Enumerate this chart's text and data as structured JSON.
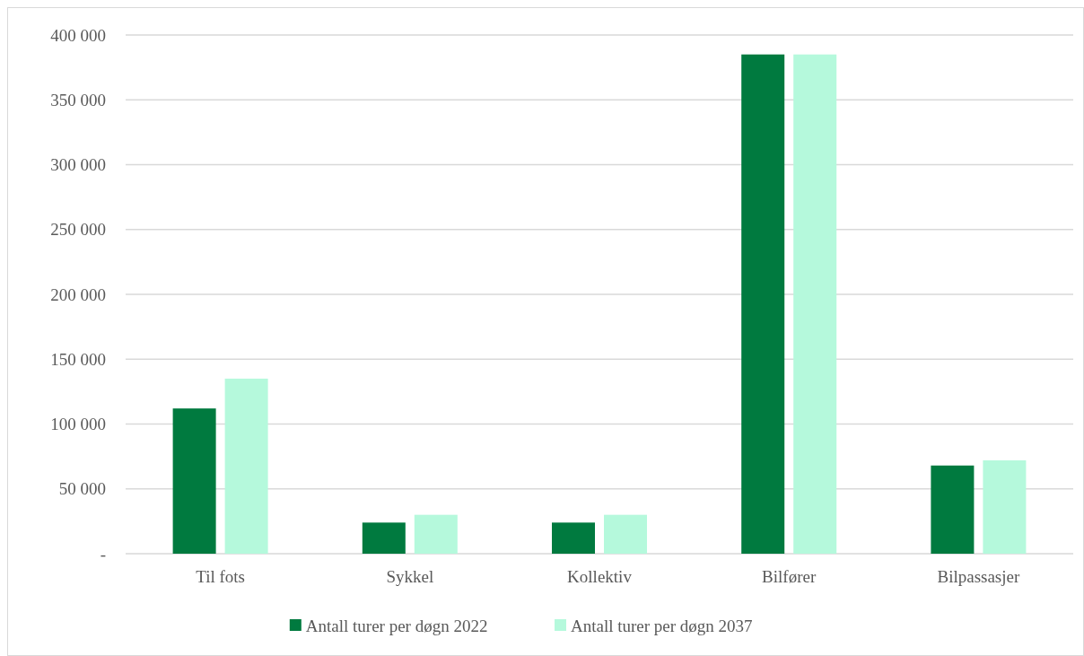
{
  "chart_data": {
    "type": "bar",
    "categories": [
      "Til fots",
      "Sykkel",
      "Kollektiv",
      "Bilfører",
      "Bilpassasjer"
    ],
    "series": [
      {
        "name": "Antall turer per døgn 2022",
        "color": "#007a3f",
        "values": [
          112000,
          24000,
          24000,
          385000,
          68000
        ]
      },
      {
        "name": "Antall turer per døgn 2037",
        "color": "#b5f9dc",
        "values": [
          135000,
          30000,
          30000,
          385000,
          72000
        ]
      }
    ],
    "ylim": [
      0,
      400000
    ],
    "yticks": [
      {
        "value": 0,
        "label": "-"
      },
      {
        "value": 50000,
        "label": "50 000"
      },
      {
        "value": 100000,
        "label": "100 000"
      },
      {
        "value": 150000,
        "label": "150 000"
      },
      {
        "value": 200000,
        "label": "200 000"
      },
      {
        "value": 250000,
        "label": "250 000"
      },
      {
        "value": 300000,
        "label": "300 000"
      },
      {
        "value": 350000,
        "label": "350 000"
      },
      {
        "value": 400000,
        "label": "400 000"
      }
    ],
    "grid": "y",
    "legend": "bottom"
  }
}
